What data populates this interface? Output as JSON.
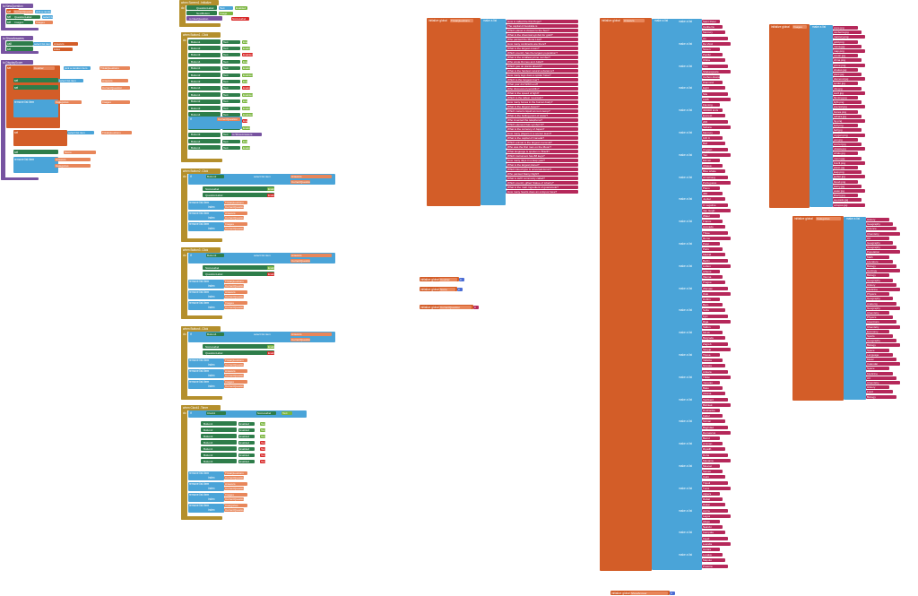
{
  "workspace": {
    "globals": [
      {
        "name": "TriviaQuestions",
        "label": "initialize global",
        "text": "make a list"
      },
      {
        "name": "Answers",
        "label": "initialize global",
        "text": "make a list"
      },
      {
        "name": "Images",
        "label": "initialize global",
        "text": "make a list"
      },
      {
        "name": "Categories",
        "label": "initialize global",
        "text": "make a list"
      },
      {
        "name": "Counter",
        "label": "initialize global",
        "value": "0"
      },
      {
        "name": "Score",
        "label": "initialize global",
        "value": "0"
      },
      {
        "name": "CurrentQuestion",
        "label": "initialize global",
        "value": "0"
      },
      {
        "name": "ShowAnswer",
        "label": "initialize global",
        "value": "0"
      }
    ],
    "events": [
      {
        "label": "when Screen1 .Initialize",
        "name": "screen-initialize"
      },
      {
        "label": "when Button1 .Click",
        "name": "button1-click"
      },
      {
        "label": "when Button2 .Click",
        "name": "button2-click"
      },
      {
        "label": "when Button3 .Click",
        "name": "button3-click"
      },
      {
        "label": "when Button4 .Click",
        "name": "button4-click"
      },
      {
        "label": "when Clock1 .Timer",
        "name": "clock-timer"
      }
    ],
    "procedures": [
      {
        "label": "to NewQuestion",
        "name": "new-question"
      },
      {
        "label": "to ShowAnswers",
        "name": "show-answers"
      },
      {
        "label": "to DisplayScore",
        "name": "display-score"
      }
    ],
    "keywords": {
      "set": "set",
      "get": "get",
      "if": "if",
      "then": "then",
      "else": "else",
      "do": "do",
      "call": "call",
      "index": "index",
      "list": "list",
      "remove": "remove list item",
      "select": "select list item",
      "random": "pick a random item",
      "makelist": "make a list",
      "text": "Text",
      "enabled": "Enabled",
      "image": "Image",
      "to": "to"
    },
    "questions": [
      "How is called the first Pope?",
      "The capital of Australia is",
      "Which planet is closest to the Sun?",
      "What is the chemical symbol for gold?",
      "Who painted the Mona Lisa?",
      "How many continents are there?",
      "What is the largest ocean?",
      "Which country has the largest population?",
      "What is the smallest prime number?",
      "Who wrote Romeo and Juliet?",
      "Which gas do plants absorb?",
      "What is the hardest natural substance?",
      "How many legs does a spider have?",
      "Which is the longest river?",
      "What year did WWII end?",
      "Who discovered penicillin?",
      "What is the speed of light?",
      "Which is the tallest mountain?",
      "How many bones in the human body?",
      "What is the largest desert?",
      "Which metal is liquid at room temp?",
      "What is the boiling point of water?",
      "Who invented the telephone?",
      "Which element has symbol O?",
      "What is the currency of Japan?",
      "How many players in a soccer team?",
      "What is the capital of Canada?",
      "Which animal is the largest mammal?",
      "Who was the first man on the Moon?",
      "What language is spoken in Brazil?",
      "Which instrument has 88 keys?",
      "How many days in a leap year?",
      "What is the largest planet?",
      "Which blood type is universal donor?",
      "Who painted Starry Night?",
      "What is H2O commonly called?",
      "Which country gifted Statue of Liberty?",
      "What is the main ingredient of guacamole?",
      "How many hearts does an octopus have?"
    ],
    "answers": [
      "Saint Peter",
      "Canberra",
      "Mercury",
      "Au",
      "Da Vinci",
      "Seven",
      "Pacific",
      "China",
      "Two",
      "Shakespeare",
      "Carbon dioxide",
      "Diamond",
      "Eight",
      "Nile",
      "1945",
      "Fleming",
      "300000 km/s",
      "Everest",
      "206",
      "Sahara",
      "Mercury",
      "100 C",
      "Bell",
      "Oxygen",
      "Yen",
      "Eleven",
      "Ottawa",
      "Blue whale",
      "Armstrong",
      "Portuguese",
      "Piano",
      "366",
      "Jupiter",
      "O negative",
      "Van Gogh",
      "Water",
      "France",
      "Avocado",
      "Three",
      "Rome",
      "Peter",
      "Paris",
      "Madrid",
      "Berlin",
      "Lisbon",
      "Athens",
      "Vienna",
      "Prague",
      "Warsaw",
      "Oslo",
      "Dublin",
      "Bern",
      "Sofia",
      "Kyiv",
      "Riga",
      "Tallinn",
      "Minsk",
      "Belgrade",
      "Zagreb",
      "Skopje",
      "Tirana",
      "Valletta",
      "Nicosia",
      "Ankara",
      "Tbilisi",
      "Yerevan",
      "Baku",
      "Astana",
      "Tashkent",
      "Bishkek",
      "Dushanbe",
      "Kabul",
      "Tehran",
      "Baghdad",
      "Damascus",
      "Beirut",
      "Amman",
      "Riyadh",
      "Doha",
      "Manama",
      "Muscat",
      "Sanaa",
      "Cairo",
      "Tripoli",
      "Tunis",
      "Algiers",
      "Rabat",
      "Dakar",
      "Accra",
      "Lagos",
      "Abuja",
      "Nairobi",
      "Kampala",
      "Kigali",
      "Luanda",
      "Harare",
      "Lusaka",
      "Maputo",
      "Pretoria",
      "Windhoek"
    ],
    "images": [
      "pope.jpg",
      "canberra.jpg",
      "mercury.png",
      "gold.png",
      "mona.jpg",
      "map.png",
      "ocean.jpg",
      "china.png",
      "prime.png",
      "shakes.jpg",
      "plant.jpg",
      "diamond.jpg",
      "spider.jpg",
      "nile.jpg",
      "ww2.jpg",
      "fleming.jpg",
      "light.png",
      "everest.jpg",
      "bones.png",
      "sahara.jpg",
      "hg.png",
      "boil.png",
      "bell.jpg",
      "oxygen.png",
      "yen.jpg",
      "soccer.jpg",
      "ottawa.jpg",
      "whale.jpg",
      "moon.jpg",
      "brazil.png",
      "piano.jpg",
      "leap.png",
      "jupiter.jpg",
      "blood.png",
      "starry.jpg",
      "water.jpg",
      "liberty.jpg",
      "avocado.jpg",
      "octopus.jpg"
    ],
    "categories": [
      "History",
      "Geography",
      "Science",
      "Chemistry",
      "Art",
      "Geography",
      "Geography",
      "Population",
      "Math",
      "Literature",
      "Biology",
      "Geology",
      "Biology",
      "Geography",
      "History",
      "Medicine",
      "Physics",
      "Geography",
      "Anatomy",
      "Geography",
      "Chemistry",
      "Physics",
      "Inventions",
      "Chemistry",
      "Economy",
      "Sports",
      "Geography",
      "Biology",
      "Space",
      "Language",
      "Music",
      "Calendar",
      "Space",
      "Medicine",
      "Art",
      "Chemistry",
      "History",
      "Food",
      "Biology"
    ],
    "component_names": {
      "question_label": "QuestionLabel",
      "image": "Image1",
      "button1": "Button1",
      "button2": "Button2",
      "button3": "Button3",
      "button4": "Button4",
      "score_label": "ScoreLabel",
      "clock": "Clock1",
      "next": "NextButton"
    },
    "colors": {
      "variables": "#d35d28",
      "lists": "#4aa4d8",
      "text": "#b5285a",
      "procedures": "#7753a0",
      "events": "#b48f2c",
      "components": "#2e7d4a",
      "logic": "#7bb540",
      "math": "#4a6cd4",
      "bool_false": "#d82a2a"
    }
  }
}
